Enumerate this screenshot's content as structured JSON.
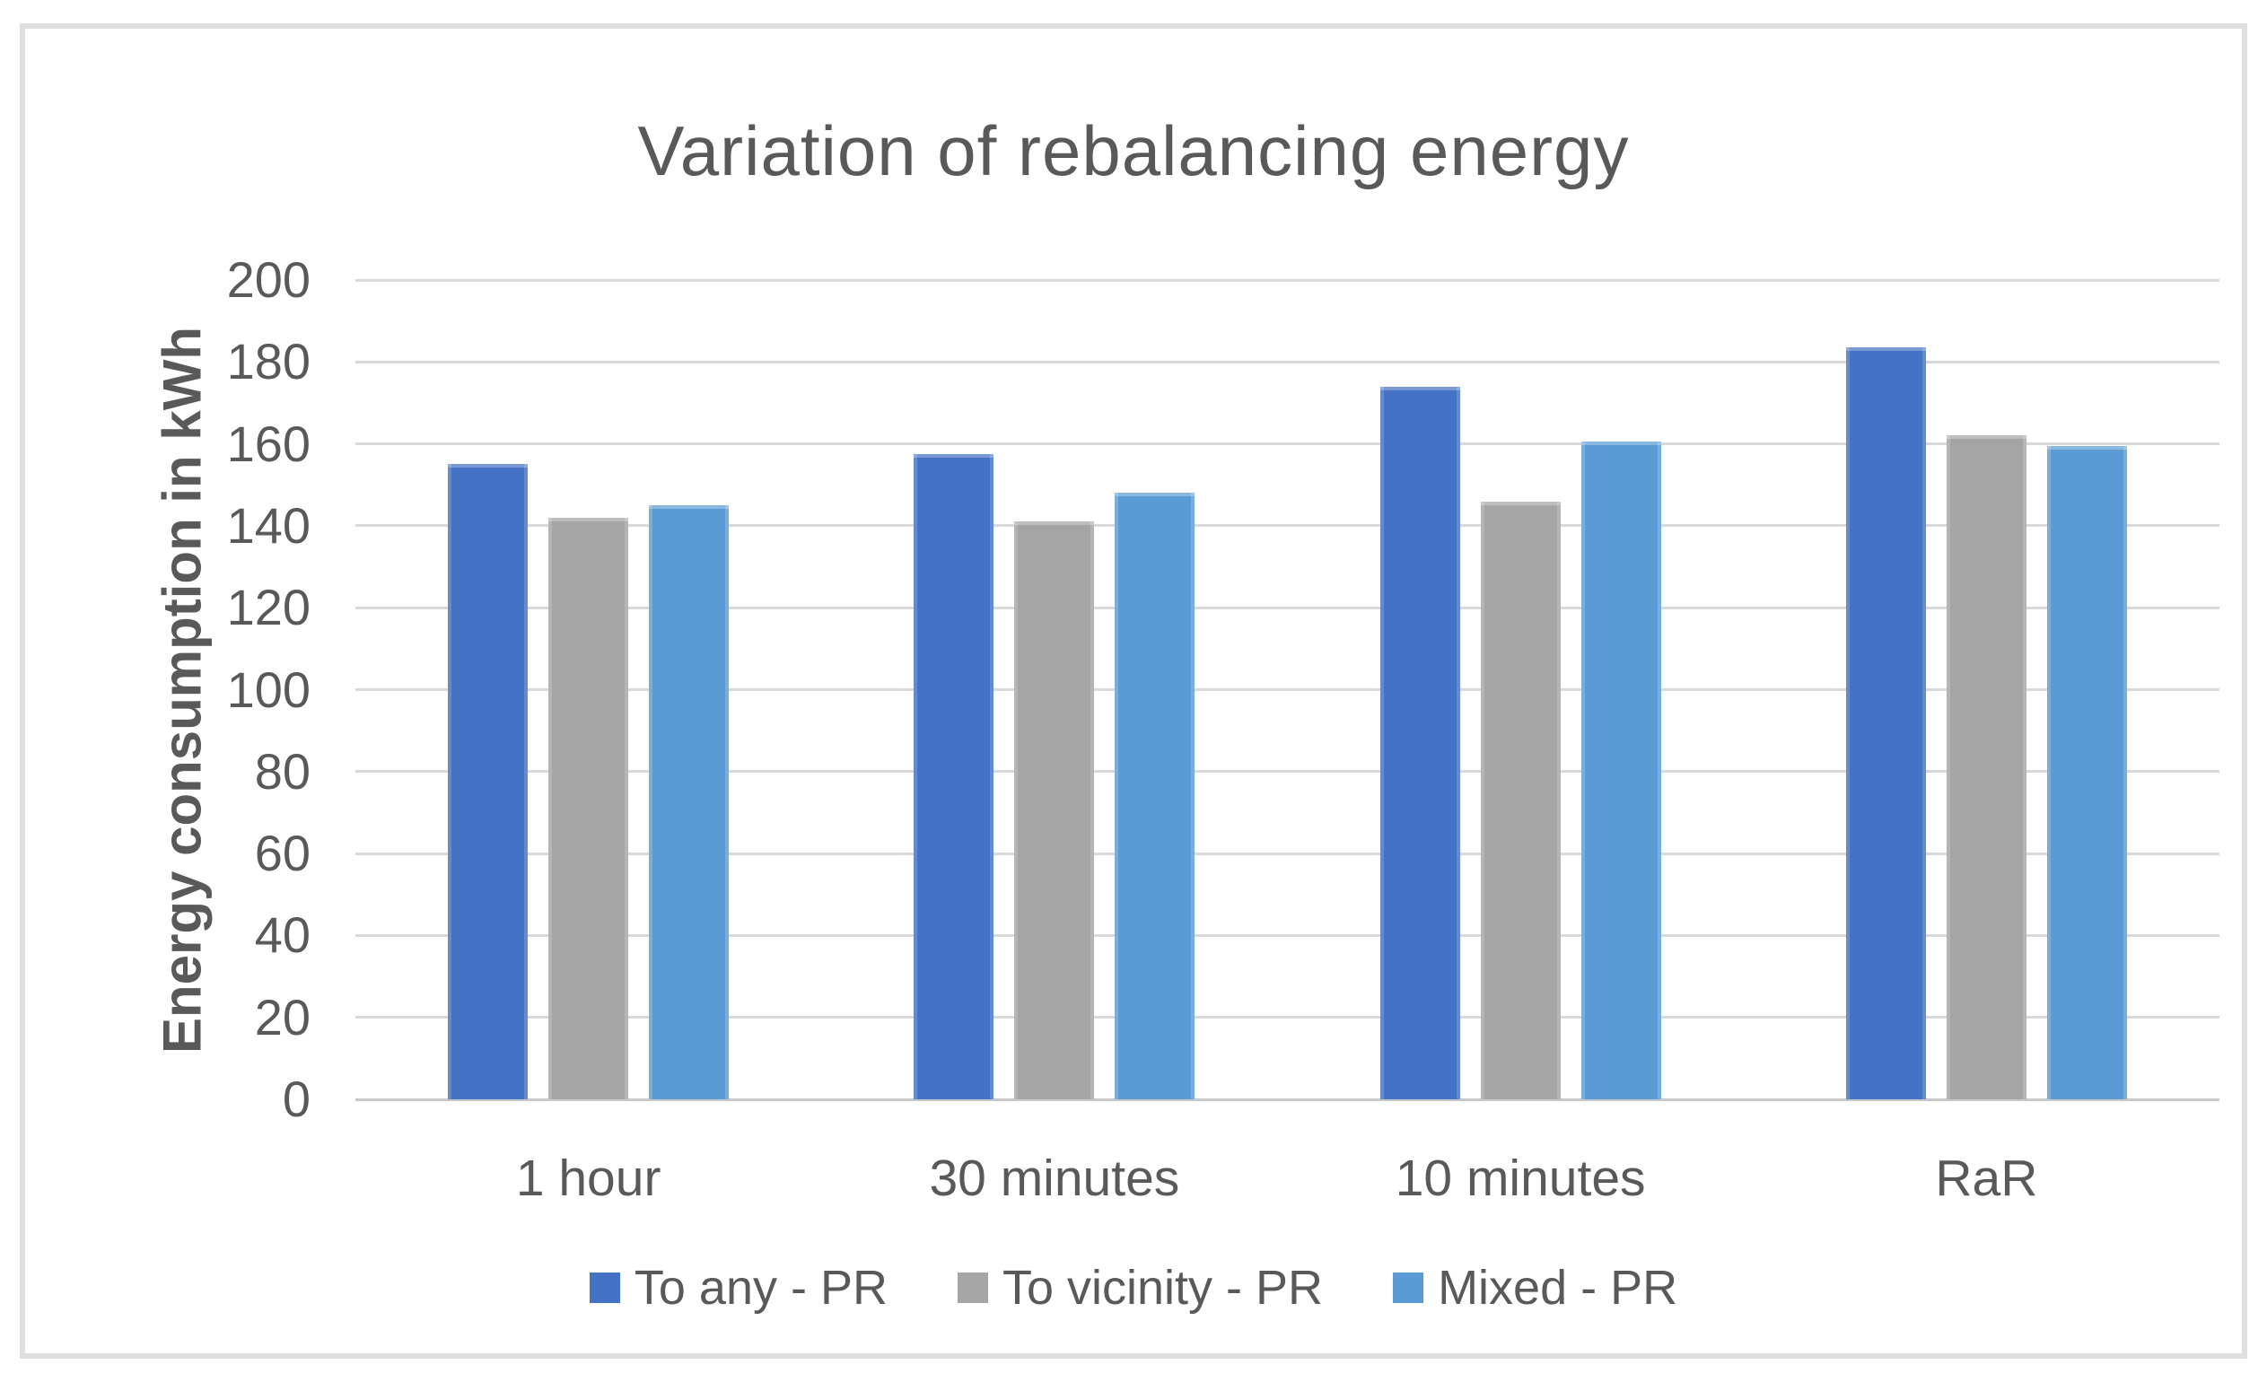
{
  "figure": {
    "background_color": "#ffffff",
    "frame_border_color": "#dfdfdf"
  },
  "chart_data": {
    "type": "bar",
    "title": "Variation of rebalancing energy",
    "xlabel": "",
    "ylabel": "Energy consumption in kWh",
    "ylim": [
      0,
      200
    ],
    "ytick_step": 20,
    "yticks": [
      0,
      20,
      40,
      60,
      80,
      100,
      120,
      140,
      160,
      180,
      200
    ],
    "grid": true,
    "legend_position": "bottom",
    "categories": [
      "1 hour",
      "30 minutes",
      "10 minutes",
      "RaR"
    ],
    "series": [
      {
        "name": "To any - PR",
        "color": "#4472C4",
        "values": [
          155,
          157.5,
          174,
          183.5
        ]
      },
      {
        "name": "To vicinity - PR",
        "color": "#A5A5A5",
        "values": [
          142,
          141,
          146,
          162
        ]
      },
      {
        "name": "Mixed - PR",
        "color": "#5B9BD5",
        "values": [
          145,
          148,
          160.5,
          159.5
        ]
      }
    ],
    "colors": {
      "gridline": "#d9d9d9",
      "axis_text": "#595959",
      "title_text": "#595959"
    }
  }
}
